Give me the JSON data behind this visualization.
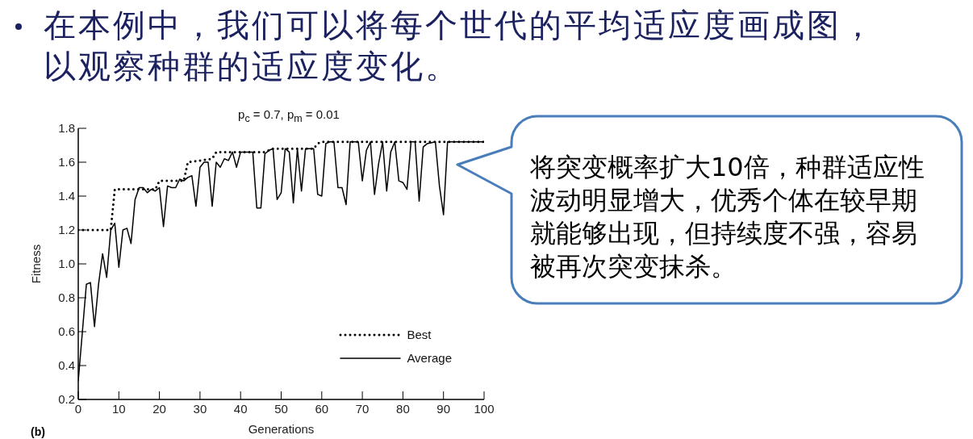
{
  "chart_data": {
    "type": "line",
    "title": "p$_{c}$ = 0.7, p$_{m}$ = 0.01",
    "xlabel": "Generations",
    "ylabel": "Fitness",
    "annotations": [
      "在本例中，我们可以将每个世代的平均适应度画成图，以观察种群的适应度变化。",
      "将突变概率扩大10倍，种群适应性波动明显增大，优秀个体在较早期就能够出现，但持续度不强，容易被再次突变抹杀。",
      "(b)"
    ],
    "xlim": [
      0,
      100
    ],
    "xticks": [
      0,
      10,
      20,
      30,
      40,
      50,
      60,
      70,
      80,
      90,
      100
    ],
    "ylim": [
      0.2,
      1.8
    ],
    "yticks": [
      0.2,
      0.4,
      0.6,
      0.8,
      {
        "value": 1,
        "label": "1.0"
      },
      1.2,
      1.4,
      1.6,
      1.8
    ],
    "legend": "bottom right",
    "series": [
      {
        "name": "Best",
        "color": "#000000",
        "line_style": "dotted",
        "x": [
          0,
          8,
          9,
          19,
          20,
          26,
          27,
          33,
          34,
          46,
          47,
          48,
          58,
          59,
          60,
          100
        ],
        "values": [
          1.2,
          1.2,
          1.44,
          1.44,
          1.49,
          1.49,
          1.6,
          1.62,
          1.66,
          1.66,
          1.67,
          1.68,
          1.68,
          1.71,
          1.72,
          1.72
        ]
      },
      {
        "name": "Average",
        "color": "#000000",
        "line_style": "solid",
        "x": [
          0,
          2,
          3,
          4,
          5,
          6,
          7,
          8,
          9,
          10,
          11,
          12,
          13,
          14,
          15,
          16,
          17,
          18,
          19,
          20,
          21,
          22,
          23,
          24,
          25,
          26,
          27,
          28,
          29,
          30,
          31,
          32,
          33,
          34,
          35,
          36,
          37,
          38,
          39,
          40,
          43,
          44,
          45,
          46,
          47,
          48,
          49,
          50,
          51,
          52,
          53,
          54,
          55,
          56,
          58,
          59,
          60,
          61,
          62,
          63,
          64,
          65,
          66,
          67,
          69,
          70,
          71,
          72,
          73,
          74,
          75,
          76,
          77,
          78,
          79,
          80,
          81,
          82,
          83,
          84,
          85,
          86,
          88,
          89,
          90,
          91,
          100
        ],
        "values": [
          0.31,
          0.88,
          0.89,
          0.63,
          0.88,
          1.06,
          0.92,
          1.2,
          1.24,
          0.98,
          1.2,
          1.21,
          1.12,
          1.38,
          1.45,
          1.45,
          1.42,
          1.44,
          1.43,
          1.45,
          1.22,
          1.46,
          1.45,
          1.45,
          1.5,
          1.49,
          1.51,
          1.52,
          1.34,
          1.57,
          1.6,
          1.6,
          1.34,
          1.6,
          1.57,
          1.62,
          1.61,
          1.66,
          1.57,
          1.66,
          1.66,
          1.33,
          1.33,
          1.65,
          1.67,
          1.68,
          1.38,
          1.42,
          1.68,
          1.66,
          1.36,
          1.68,
          1.43,
          1.68,
          1.68,
          1.41,
          1.4,
          1.71,
          1.72,
          1.72,
          1.45,
          1.45,
          1.35,
          1.72,
          1.72,
          1.49,
          1.67,
          1.72,
          1.41,
          1.59,
          1.72,
          1.43,
          1.66,
          1.72,
          1.49,
          1.48,
          1.44,
          1.72,
          1.72,
          1.37,
          1.69,
          1.71,
          1.72,
          1.46,
          1.29,
          1.72,
          1.72
        ]
      }
    ]
  }
}
